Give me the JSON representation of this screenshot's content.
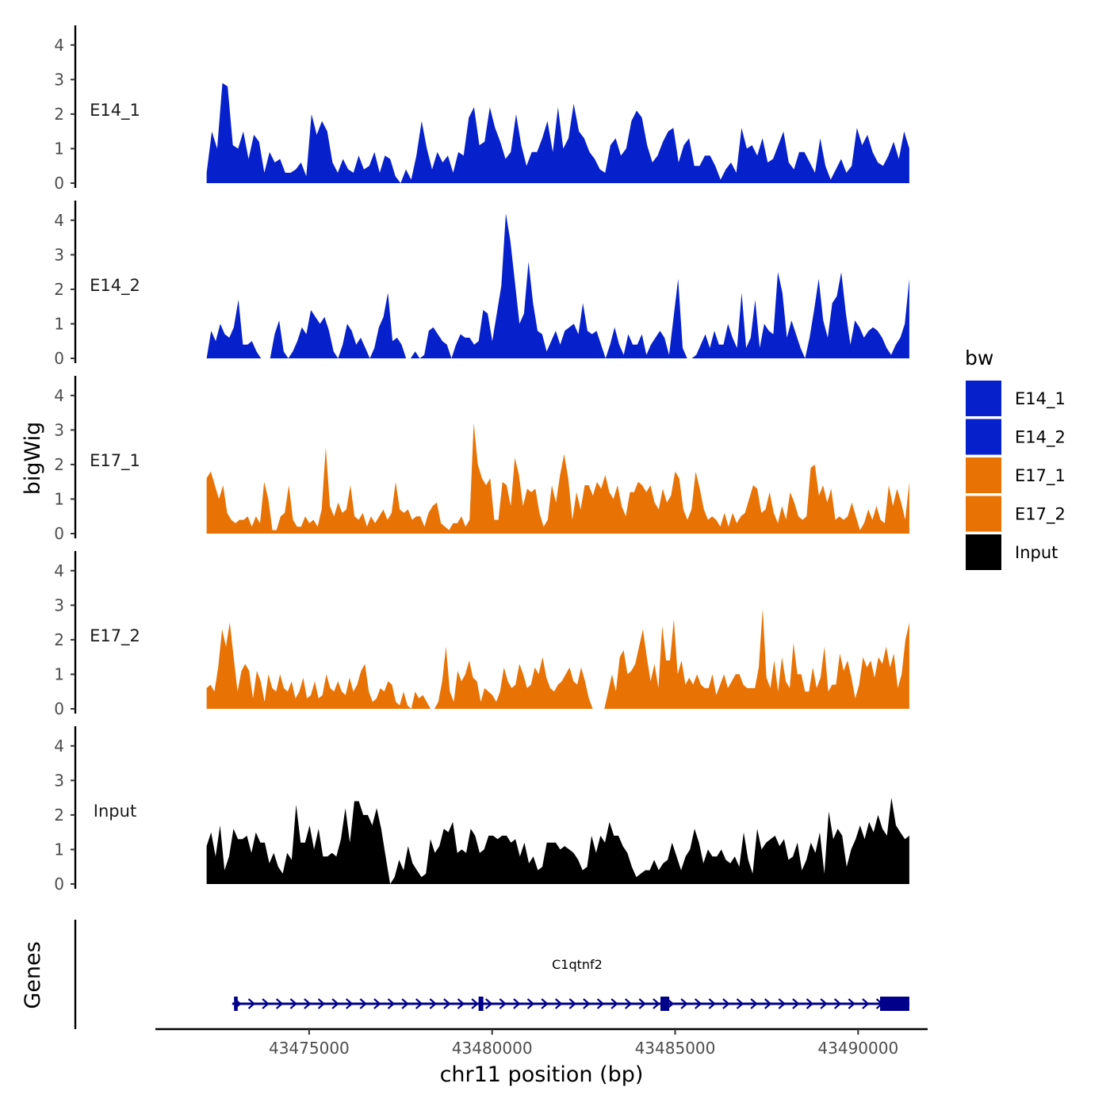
{
  "chart_data": {
    "type": "area",
    "ylabel": "bigWig",
    "genes_label": "Genes",
    "xlabel": "chr11 position (bp)",
    "xlim": [
      43470800,
      43491900
    ],
    "signal_range": [
      43472200,
      43491400
    ],
    "xticks": [
      43475000,
      43480000,
      43485000,
      43490000
    ],
    "xtick_labels": [
      "43475000",
      "43480000",
      "43485000",
      "43490000"
    ],
    "ylim": [
      0,
      4.5
    ],
    "yticks": [
      0,
      1,
      2,
      3,
      4
    ],
    "ytick_labels": [
      "0",
      "1",
      "2",
      "3",
      "4"
    ],
    "legend": {
      "title": "bw",
      "entries": [
        {
          "label": "E14_1",
          "color": "#0620cc"
        },
        {
          "label": "E14_2",
          "color": "#0620cc"
        },
        {
          "label": "E17_1",
          "color": "#e87304"
        },
        {
          "label": "E17_2",
          "color": "#e87304"
        },
        {
          "label": "Input",
          "color": "#000000"
        }
      ]
    },
    "series": [
      {
        "name": "E14_1",
        "color": "#0620cc",
        "values": [
          0.3,
          1.5,
          1.0,
          2.9,
          2.8,
          1.1,
          1.0,
          1.5,
          0.7,
          1.4,
          1.2,
          0.3,
          0.9,
          0.6,
          0.7,
          0.3,
          0.3,
          0.4,
          0.6,
          0.2,
          2.0,
          1.4,
          1.8,
          1.5,
          0.6,
          0.3,
          0.7,
          0.4,
          0.3,
          0.8,
          0.4,
          0.5,
          0.9,
          0.3,
          0.8,
          0.7,
          0.2,
          0.0,
          0.4,
          0.1,
          0.8,
          1.8,
          1.0,
          0.4,
          0.9,
          0.6,
          0.8,
          0.3,
          0.9,
          0.8,
          1.9,
          2.2,
          1.1,
          1.2,
          2.2,
          1.6,
          1.2,
          0.7,
          0.9,
          2.0,
          1.1,
          0.5,
          0.9,
          0.9,
          1.3,
          1.8,
          0.9,
          2.2,
          1.0,
          1.3,
          2.3,
          1.5,
          1.3,
          0.9,
          0.7,
          0.4,
          0.3,
          1.1,
          1.3,
          0.8,
          1.0,
          1.8,
          2.1,
          1.9,
          1.1,
          0.6,
          0.8,
          1.2,
          1.5,
          1.6,
          0.6,
          1.1,
          1.3,
          0.5,
          0.5,
          0.8,
          0.8,
          0.5,
          0.1,
          0.4,
          0.6,
          0.3,
          1.6,
          1.0,
          1.1,
          0.8,
          1.3,
          0.6,
          0.7,
          1.1,
          1.5,
          0.6,
          0.4,
          0.9,
          0.9,
          0.6,
          0.3,
          1.3,
          0.5,
          0.1,
          0.4,
          0.7,
          0.3,
          0.5,
          1.6,
          1.1,
          1.4,
          0.9,
          0.6,
          0.5,
          0.8,
          1.2,
          0.7,
          1.5,
          1.0
        ]
      },
      {
        "name": "E14_2",
        "color": "#0620cc",
        "values": [
          0.0,
          0.8,
          0.5,
          1.0,
          0.7,
          0.6,
          0.9,
          1.7,
          0.4,
          0.4,
          0.5,
          0.2,
          0.0,
          0.0,
          0.0,
          0.7,
          1.1,
          0.2,
          0.0,
          0.2,
          0.5,
          0.9,
          0.7,
          1.4,
          1.2,
          1.0,
          1.2,
          0.8,
          0.2,
          0.0,
          0.4,
          1.0,
          0.8,
          0.4,
          0.6,
          0.3,
          0.0,
          0.3,
          0.9,
          1.2,
          1.9,
          0.5,
          0.6,
          0.4,
          0.0,
          0.0,
          0.2,
          0.0,
          0.1,
          0.8,
          0.9,
          0.7,
          0.5,
          0.4,
          0.0,
          0.4,
          0.7,
          0.6,
          0.6,
          0.4,
          0.5,
          1.4,
          1.3,
          0.5,
          1.3,
          2.1,
          4.2,
          3.4,
          2.2,
          1.0,
          1.3,
          2.8,
          1.6,
          0.8,
          0.7,
          0.2,
          0.5,
          0.8,
          0.4,
          0.8,
          0.9,
          1.0,
          0.7,
          1.6,
          0.8,
          0.7,
          0.8,
          0.4,
          0.0,
          0.4,
          0.9,
          0.4,
          0.1,
          0.7,
          0.4,
          0.4,
          0.7,
          0.1,
          0.4,
          0.6,
          0.8,
          0.6,
          0.1,
          1.2,
          2.3,
          0.3,
          0.0,
          0.0,
          0.1,
          0.4,
          0.7,
          0.3,
          0.8,
          0.4,
          0.4,
          1.0,
          0.6,
          0.3,
          1.9,
          0.3,
          0.6,
          1.7,
          0.3,
          1.0,
          0.8,
          0.7,
          2.5,
          1.9,
          0.6,
          1.1,
          0.7,
          0.3,
          0.0,
          0.6,
          1.4,
          2.3,
          1.1,
          0.6,
          1.6,
          1.8,
          2.5,
          1.3,
          0.4,
          1.1,
          0.9,
          0.6,
          0.8,
          0.9,
          0.8,
          0.6,
          0.3,
          0.1,
          0.4,
          0.6,
          1.0,
          2.3
        ]
      },
      {
        "name": "E17_1",
        "color": "#e87304",
        "values": [
          1.6,
          1.8,
          1.4,
          1.0,
          1.4,
          0.6,
          0.4,
          0.3,
          0.4,
          0.4,
          0.5,
          0.2,
          0.5,
          0.3,
          1.5,
          1.0,
          0.1,
          0.1,
          0.5,
          0.6,
          1.4,
          0.4,
          0.2,
          0.2,
          0.5,
          0.3,
          0.4,
          0.2,
          0.7,
          2.5,
          0.8,
          0.5,
          0.9,
          0.6,
          0.7,
          1.4,
          0.5,
          0.4,
          0.6,
          0.2,
          0.5,
          0.3,
          0.5,
          0.7,
          0.4,
          0.6,
          1.5,
          0.7,
          0.6,
          0.7,
          0.4,
          0.5,
          0.5,
          0.2,
          0.6,
          0.8,
          0.9,
          0.3,
          0.2,
          0.1,
          0.3,
          0.3,
          0.5,
          0.2,
          0.4,
          3.2,
          2.0,
          1.6,
          1.4,
          1.6,
          0.4,
          0.4,
          1.5,
          1.4,
          0.8,
          2.2,
          1.7,
          0.8,
          1.3,
          1.2,
          1.3,
          0.6,
          0.2,
          0.4,
          1.4,
          0.9,
          1.7,
          2.3,
          1.6,
          0.4,
          1.2,
          0.7,
          1.4,
          1.4,
          1.1,
          1.5,
          1.3,
          1.7,
          1.2,
          1.0,
          1.4,
          0.8,
          0.5,
          1.2,
          1.2,
          1.5,
          1.4,
          1.2,
          1.4,
          0.9,
          0.7,
          1.3,
          0.9,
          1.1,
          1.8,
          1.6,
          0.7,
          0.4,
          0.7,
          1.8,
          1.3,
          0.7,
          0.4,
          0.5,
          0.4,
          0.2,
          0.6,
          0.2,
          0.6,
          0.3,
          0.5,
          0.6,
          1.0,
          1.4,
          1.3,
          0.6,
          0.7,
          1.2,
          0.6,
          0.3,
          0.8,
          0.4,
          1.2,
          0.9,
          0.5,
          0.4,
          0.5,
          1.9,
          2.0,
          1.1,
          1.4,
          0.9,
          1.3,
          0.4,
          0.5,
          0.4,
          0.5,
          0.9,
          0.5,
          0.1,
          0.3,
          0.7,
          0.4,
          0.8,
          0.4,
          0.3,
          1.4,
          0.8,
          1.3,
          0.9,
          0.4,
          1.5
        ]
      },
      {
        "name": "E17_2",
        "color": "#e87304",
        "values": [
          0.6,
          0.7,
          0.5,
          1.2,
          2.3,
          1.8,
          2.5,
          1.5,
          0.5,
          1.1,
          1.3,
          1.1,
          0.3,
          1.1,
          0.8,
          0.2,
          1.0,
          0.6,
          0.5,
          1.0,
          0.6,
          0.5,
          0.8,
          0.3,
          0.5,
          0.9,
          0.3,
          0.4,
          0.8,
          0.3,
          0.4,
          1.0,
          0.6,
          0.5,
          0.8,
          0.5,
          0.4,
          0.9,
          0.5,
          0.7,
          1.1,
          1.3,
          0.5,
          0.2,
          0.3,
          0.6,
          0.5,
          0.8,
          0.7,
          0.2,
          0.1,
          0.5,
          0.1,
          0.0,
          0.5,
          0.3,
          0.4,
          0.2,
          0.0,
          0.0,
          0.2,
          0.8,
          1.8,
          0.5,
          0.2,
          1.1,
          0.8,
          1.0,
          1.4,
          0.9,
          0.8,
          0.2,
          0.6,
          0.5,
          0.4,
          0.2,
          0.5,
          1.2,
          0.8,
          0.6,
          0.7,
          1.3,
          1.0,
          0.6,
          0.7,
          1.2,
          1.0,
          1.5,
          0.9,
          0.6,
          0.5,
          0.7,
          0.8,
          1.0,
          1.2,
          0.8,
          0.7,
          1.2,
          0.8,
          0.3,
          0.0,
          0.0,
          0.0,
          0.0,
          0.5,
          1.0,
          0.5,
          1.5,
          1.7,
          1.0,
          1.1,
          1.3,
          1.8,
          2.3,
          1.5,
          0.8,
          1.3,
          0.6,
          2.4,
          1.4,
          1.4,
          2.6,
          1.0,
          1.4,
          0.7,
          0.9,
          0.7,
          1.0,
          0.7,
          0.6,
          0.6,
          1.0,
          0.4,
          0.7,
          1.0,
          0.6,
          0.8,
          1.0,
          1.0,
          0.7,
          0.6,
          0.6,
          0.6,
          1.2,
          2.9,
          0.9,
          0.6,
          1.4,
          0.5,
          1.5,
          0.8,
          0.6,
          1.9,
          1.0,
          1.0,
          0.5,
          0.5,
          1.2,
          0.6,
          0.9,
          1.8,
          0.5,
          0.7,
          0.7,
          1.6,
          1.1,
          1.4,
          0.9,
          0.3,
          0.7,
          1.5,
          1.2,
          1.4,
          0.9,
          1.5,
          1.3,
          1.8,
          1.2,
          1.6,
          0.6,
          1.0,
          2.0,
          2.5
        ]
      },
      {
        "name": "Input",
        "color": "#000000",
        "values": [
          1.1,
          1.5,
          0.8,
          1.7,
          0.4,
          0.8,
          1.6,
          1.3,
          1.3,
          1.4,
          0.9,
          1.5,
          1.2,
          1.2,
          0.6,
          0.9,
          0.5,
          0.3,
          0.9,
          0.7,
          2.3,
          1.2,
          1.2,
          1.7,
          1.0,
          1.6,
          0.8,
          0.8,
          0.9,
          0.8,
          1.3,
          2.2,
          1.2,
          2.4,
          2.4,
          2.0,
          2.0,
          1.7,
          2.2,
          1.6,
          0.8,
          0.0,
          0.2,
          0.7,
          0.4,
          1.1,
          0.6,
          0.4,
          0.2,
          0.3,
          1.3,
          0.9,
          1.1,
          1.6,
          1.5,
          1.8,
          0.9,
          1.0,
          0.9,
          1.6,
          1.4,
          0.9,
          1.0,
          1.4,
          1.4,
          1.3,
          1.4,
          1.4,
          1.2,
          1.3,
          0.8,
          1.2,
          0.6,
          0.8,
          0.4,
          0.5,
          1.2,
          1.2,
          1.2,
          1.0,
          1.1,
          1.0,
          0.9,
          0.7,
          0.4,
          0.5,
          1.4,
          0.9,
          1.4,
          1.2,
          1.8,
          1.4,
          1.4,
          1.1,
          0.9,
          0.5,
          0.2,
          0.3,
          0.4,
          0.4,
          0.7,
          0.4,
          0.6,
          0.7,
          1.2,
          0.8,
          0.4,
          0.8,
          1.0,
          1.6,
          1.2,
          0.6,
          1.0,
          0.8,
          0.8,
          1.0,
          0.7,
          0.6,
          0.8,
          0.5,
          1.5,
          0.7,
          0.3,
          1.6,
          1.0,
          1.2,
          1.3,
          1.4,
          1.1,
          1.3,
          0.7,
          0.8,
          1.2,
          0.4,
          0.7,
          1.2,
          0.9,
          1.5,
          0.3,
          2.1,
          1.3,
          1.6,
          1.4,
          0.5,
          1.0,
          1.3,
          1.7,
          1.3,
          1.8,
          1.5,
          2.0,
          1.6,
          1.4,
          2.5,
          1.7,
          1.5,
          1.3,
          1.4
        ]
      }
    ],
    "gene": {
      "name": "C1qtnf2",
      "strand": "+",
      "start": 43472900,
      "end": 43491400,
      "exons": [
        [
          43472950,
          43473050
        ],
        [
          43479630,
          43479760
        ],
        [
          43484600,
          43484840
        ],
        [
          43490600,
          43491400
        ]
      ],
      "color": "#00008b"
    }
  }
}
